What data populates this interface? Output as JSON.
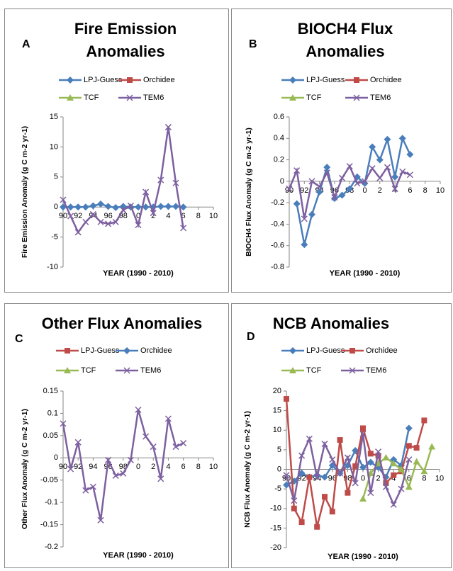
{
  "chart_data": [
    {
      "type": "line",
      "label": "A",
      "title": "Fire Emission Anomalies",
      "ylabel": "Fire Emission Anomaly (g C m-2 yr-1)",
      "xlabel": "YEAR (1990 - 2010)",
      "x": [
        1990,
        1991,
        1992,
        1993,
        1994,
        1995,
        1996,
        1997,
        1998,
        1999,
        2000,
        2001,
        2002,
        2003,
        2004,
        2005,
        2006
      ],
      "xlim": [
        1990,
        2010
      ],
      "xticks": [
        {
          "value": 1990,
          "label": "90"
        },
        {
          "value": 1992,
          "label": "92"
        },
        {
          "value": 1994,
          "label": "94"
        },
        {
          "value": 1996,
          "label": "96"
        },
        {
          "value": 1998,
          "label": "98"
        },
        {
          "value": 2000,
          "label": "0"
        },
        {
          "value": 2002,
          "label": "2"
        },
        {
          "value": 2004,
          "label": "4"
        },
        {
          "value": 2006,
          "label": "6"
        },
        {
          "value": 2008,
          "label": "8"
        },
        {
          "value": 2010,
          "label": "10"
        }
      ],
      "ylim": [
        -10,
        15
      ],
      "yticks": [
        -10,
        -5,
        0,
        5,
        10,
        15
      ],
      "series": [
        {
          "name": "LPJ-Guess",
          "color": "#4a7ebb",
          "marker": "diamond",
          "values": [
            0,
            0,
            0,
            0,
            0.2,
            0.5,
            0.1,
            -0.1,
            0.1,
            0,
            0,
            0,
            0,
            0.1,
            0.1,
            0.1,
            0
          ]
        },
        {
          "name": "Orchidee",
          "color": "#be4b48",
          "marker": "square",
          "values": [
            null,
            null,
            null,
            null,
            null,
            null,
            null,
            null,
            null,
            null,
            null,
            null,
            null,
            null,
            null,
            null,
            null
          ]
        },
        {
          "name": "TCF",
          "color": "#98b954",
          "marker": "triangle",
          "values": [
            null,
            null,
            null,
            null,
            null,
            null,
            null,
            null,
            null,
            null,
            null,
            null,
            null,
            null,
            null,
            null,
            null
          ]
        },
        {
          "name": "TEM6",
          "color": "#7d60a0",
          "marker": "cross",
          "values": [
            1.2,
            -1.5,
            -4.2,
            -2.5,
            -1.2,
            -2.5,
            -2.8,
            -2.5,
            -0.5,
            0.2,
            -3,
            2.5,
            -1,
            4.5,
            13.3,
            4,
            -3.5
          ]
        }
      ]
    },
    {
      "type": "line",
      "label": "B",
      "title": "BIOCH4 Flux Anomalies",
      "ylabel": "BIOCH4 Flux Anomaly (g C m-2 yr-1)",
      "xlabel": "YEAR (1990 - 2010)",
      "x": [
        1990,
        1991,
        1992,
        1993,
        1994,
        1995,
        1996,
        1997,
        1998,
        1999,
        2000,
        2001,
        2002,
        2003,
        2004,
        2005,
        2006
      ],
      "xlim": [
        1990,
        2010
      ],
      "xticks": [
        {
          "value": 1990,
          "label": "90"
        },
        {
          "value": 1992,
          "label": "92"
        },
        {
          "value": 1994,
          "label": "94"
        },
        {
          "value": 1996,
          "label": "96"
        },
        {
          "value": 1998,
          "label": "98"
        },
        {
          "value": 2000,
          "label": "0"
        },
        {
          "value": 2002,
          "label": "2"
        },
        {
          "value": 2004,
          "label": "4"
        },
        {
          "value": 2006,
          "label": "6"
        },
        {
          "value": 2008,
          "label": "8"
        },
        {
          "value": 2010,
          "label": "10"
        }
      ],
      "ylim": [
        -0.8,
        0.6
      ],
      "yticks": [
        -0.8,
        -0.6,
        -0.4,
        -0.2,
        0,
        0.2,
        0.4,
        0.6
      ],
      "series": [
        {
          "name": "LPJ-Guess",
          "color": "#4a7ebb",
          "marker": "diamond",
          "values": [
            null,
            -0.21,
            -0.59,
            -0.31,
            -0.1,
            0.13,
            -0.16,
            -0.13,
            -0.07,
            0.04,
            -0.02,
            0.32,
            0.2,
            0.39,
            0.04,
            0.4,
            0.25
          ]
        },
        {
          "name": "Orchidee",
          "color": "#be4b48",
          "marker": "square",
          "values": [
            null,
            null,
            null,
            null,
            null,
            null,
            null,
            null,
            null,
            null,
            null,
            null,
            null,
            null,
            null,
            null,
            null
          ]
        },
        {
          "name": "TCF",
          "color": "#98b954",
          "marker": "triangle",
          "values": [
            null,
            null,
            null,
            null,
            null,
            null,
            null,
            null,
            null,
            null,
            null,
            null,
            null,
            null,
            null,
            null,
            null
          ]
        },
        {
          "name": "TEM6",
          "color": "#7d60a0",
          "marker": "cross",
          "values": [
            -0.07,
            0.1,
            -0.35,
            0,
            -0.05,
            0.08,
            -0.15,
            0.03,
            0.14,
            -0.02,
            0,
            0.12,
            0.03,
            0.13,
            -0.07,
            0.09,
            0.06
          ]
        }
      ]
    },
    {
      "type": "line",
      "label": "C",
      "title": "Other Flux Anomalies",
      "ylabel": "Other Flux Anomaly (g C m-2 yr-1)",
      "xlabel": "YEAR (1990 - 2010)",
      "x": [
        1990,
        1991,
        1992,
        1993,
        1994,
        1995,
        1996,
        1997,
        1998,
        1999,
        2000,
        2001,
        2002,
        2003,
        2004,
        2005,
        2006
      ],
      "xlim": [
        1990,
        2010
      ],
      "xticks": [
        {
          "value": 1990,
          "label": "90"
        },
        {
          "value": 1992,
          "label": "92"
        },
        {
          "value": 1994,
          "label": "94"
        },
        {
          "value": 1996,
          "label": "96"
        },
        {
          "value": 1998,
          "label": "98"
        },
        {
          "value": 2000,
          "label": "0"
        },
        {
          "value": 2002,
          "label": "2"
        },
        {
          "value": 2004,
          "label": "4"
        },
        {
          "value": 2006,
          "label": "6"
        },
        {
          "value": 2008,
          "label": "8"
        },
        {
          "value": 2010,
          "label": "10"
        }
      ],
      "ylim": [
        -0.2,
        0.15
      ],
      "yticks": [
        -0.2,
        -0.15,
        -0.1,
        -0.05,
        0,
        0.05,
        0.1,
        0.15
      ],
      "series": [
        {
          "name": "LPJ-Guess",
          "color": "#be4b48",
          "marker": "square",
          "values": [
            null,
            null,
            null,
            null,
            null,
            null,
            null,
            null,
            null,
            null,
            null,
            null,
            null,
            null,
            null,
            null,
            null
          ]
        },
        {
          "name": "Orchidee",
          "color": "#4a7ebb",
          "marker": "diamond",
          "values": [
            null,
            null,
            null,
            null,
            null,
            null,
            null,
            null,
            null,
            null,
            null,
            null,
            null,
            null,
            null,
            null,
            null
          ]
        },
        {
          "name": "TCF",
          "color": "#98b954",
          "marker": "triangle",
          "values": [
            null,
            null,
            null,
            null,
            null,
            null,
            null,
            null,
            null,
            null,
            null,
            null,
            null,
            null,
            null,
            null,
            null
          ]
        },
        {
          "name": "TEM6",
          "color": "#7d60a0",
          "marker": "cross",
          "values": [
            0.077,
            -0.025,
            0.035,
            -0.073,
            -0.065,
            -0.14,
            -0.005,
            -0.04,
            -0.035,
            -0.005,
            0.108,
            0.048,
            0.025,
            -0.047,
            0.088,
            0.025,
            0.033
          ]
        }
      ]
    },
    {
      "type": "line",
      "label": "D",
      "title": "NCB Anomalies",
      "ylabel": "NCB Flux Anomaly (g C m-2 yr-1)",
      "xlabel": "YEAR (1990 - 2010)",
      "x": [
        1990,
        1991,
        1992,
        1993,
        1994,
        1995,
        1996,
        1997,
        1998,
        1999,
        2000,
        2001,
        2002,
        2003,
        2004,
        2005,
        2006,
        2007,
        2008,
        2009
      ],
      "xlim": [
        1990,
        2010
      ],
      "xticks": [
        {
          "value": 1990,
          "label": "90"
        },
        {
          "value": 1992,
          "label": "92"
        },
        {
          "value": 1994,
          "label": "94"
        },
        {
          "value": 1996,
          "label": "96"
        },
        {
          "value": 1998,
          "label": "98"
        },
        {
          "value": 2000,
          "label": "0"
        },
        {
          "value": 2002,
          "label": "2"
        },
        {
          "value": 2004,
          "label": "4"
        },
        {
          "value": 2006,
          "label": "6"
        },
        {
          "value": 2008,
          "label": "8"
        },
        {
          "value": 2010,
          "label": "10"
        }
      ],
      "ylim": [
        -20,
        20
      ],
      "yticks": [
        -20,
        -15,
        -10,
        -5,
        0,
        5,
        10,
        15,
        20
      ],
      "series": [
        {
          "name": "LPJ-Guess",
          "color": "#4a7ebb",
          "marker": "diamond",
          "values": [
            -4,
            -3,
            -1,
            -2,
            -1.5,
            -2,
            1,
            -1,
            1,
            4.8,
            0.5,
            1.8,
            0.5,
            -2,
            2.5,
            1,
            10.5,
            null,
            null,
            null
          ]
        },
        {
          "name": "Orchidee",
          "color": "#be4b48",
          "marker": "square",
          "values": [
            18,
            -10,
            -13.5,
            -2,
            -14.7,
            -7,
            -10.8,
            7.5,
            -6,
            0.8,
            10.5,
            4,
            3.5,
            -3.5,
            -1.5,
            -0.5,
            6,
            5.5,
            12.5,
            null
          ]
        },
        {
          "name": "TCF",
          "color": "#98b954",
          "marker": "triangle",
          "values": [
            null,
            null,
            null,
            null,
            null,
            null,
            null,
            null,
            null,
            null,
            -7.5,
            -1,
            1.5,
            3,
            1.5,
            0,
            -4.5,
            2,
            -0.5,
            5.8
          ]
        },
        {
          "name": "TEM6",
          "color": "#7d60a0",
          "marker": "cross",
          "values": [
            -1.5,
            -8,
            3.5,
            7.8,
            -2,
            6.5,
            2.5,
            -1,
            3,
            -3.5,
            9,
            -6,
            4.5,
            -4.5,
            -9,
            -5,
            2.5,
            null,
            null,
            null
          ]
        }
      ]
    }
  ]
}
